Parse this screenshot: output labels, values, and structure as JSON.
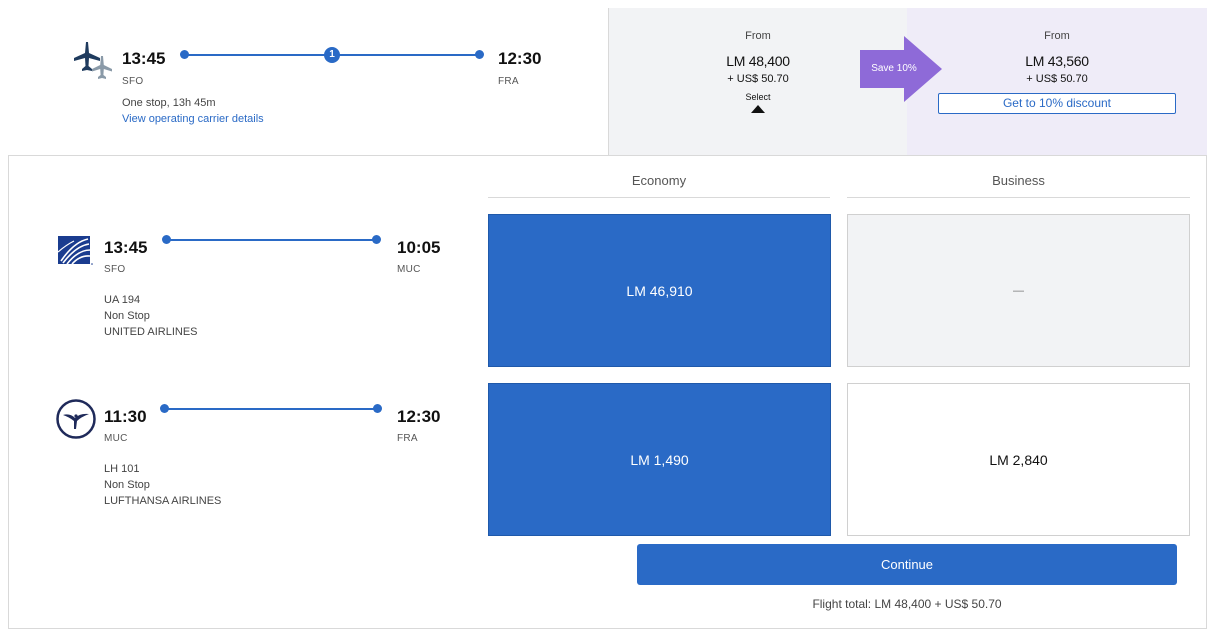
{
  "summary": {
    "depart_time": "13:45",
    "depart_code": "SFO",
    "arrive_time": "12:30",
    "arrive_code": "FRA",
    "stops_badge": "1",
    "stops_text": "One stop, 13h 45m",
    "carrier_link": "View operating carrier details"
  },
  "fares": {
    "economy": {
      "from_label": "From",
      "price": "LM 48,400",
      "fee": "+ US$ 50.70",
      "select_label": "Select"
    },
    "business": {
      "from_label": "From",
      "price": "LM 43,560",
      "fee": "+ US$ 50.70",
      "discount_button": "Get to 10% discount"
    },
    "save_badge": "Save 10%"
  },
  "columns": {
    "economy": "Economy",
    "business": "Business"
  },
  "segments": [
    {
      "depart_time": "13:45",
      "depart_code": "SFO",
      "arrive_time": "10:05",
      "arrive_code": "MUC",
      "flight_number": "UA 194",
      "stop_info": "Non Stop",
      "airline": "UNITED AIRLINES",
      "logo": "united-airlines-logo",
      "economy_price": "LM 46,910",
      "business_price": "—"
    },
    {
      "depart_time": "11:30",
      "depart_code": "MUC",
      "arrive_time": "12:30",
      "arrive_code": "FRA",
      "flight_number": "LH 101",
      "stop_info": "Non Stop",
      "airline": "LUFTHANSA AIRLINES",
      "logo": "lufthansa-logo",
      "economy_price": "LM 1,490",
      "business_price": "LM 2,840"
    }
  ],
  "actions": {
    "continue_label": "Continue",
    "flight_total": "Flight total: LM 48,400 + US$ 50.70"
  },
  "colors": {
    "accent": "#2a6ac6",
    "save_badge": "#8e6ad8",
    "business_bg": "#efecf8"
  }
}
